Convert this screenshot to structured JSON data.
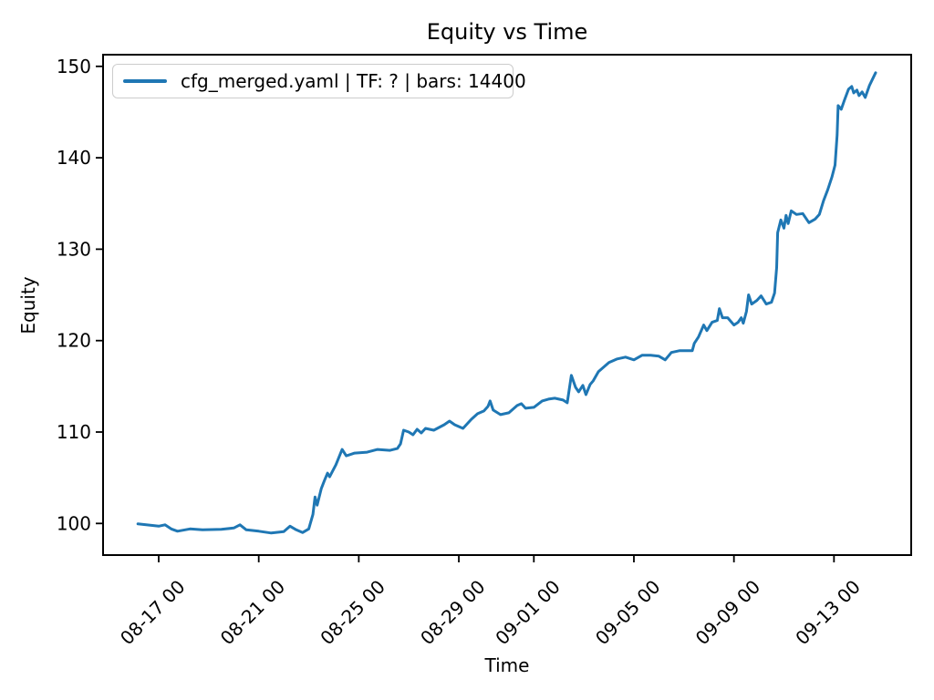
{
  "title": "Equity vs Time",
  "axis": {
    "xlabel": "Time",
    "ylabel": "Equity"
  },
  "legend": {
    "label": "cfg_merged.yaml | TF: ? | bars: 14400",
    "position": "upper left"
  },
  "colors": {
    "line": "#1f77b4",
    "spine": "#000000",
    "tick_text": "#000000",
    "legend_border": "#cccccc",
    "background": "#ffffff"
  },
  "chart_data": {
    "type": "line",
    "title": "Equity vs Time",
    "xlabel": "Time",
    "ylabel": "Equity",
    "grid": false,
    "legend_position": "upper left",
    "x_tick_labels": [
      "08-17 00",
      "08-21 00",
      "08-25 00",
      "08-29 00",
      "09-01 00",
      "09-05 00",
      "09-09 00",
      "09-13 00"
    ],
    "x_tick_rotation_deg": 45,
    "y_ticks": [
      100,
      110,
      120,
      130,
      140,
      150
    ],
    "ylim": [
      96.5,
      151.4
    ],
    "xlim": [
      "08-14 18:00",
      "09-16 02:00"
    ],
    "series": [
      {
        "name": "cfg_merged.yaml | TF: ? | bars: 14400",
        "color": "#1f77b4",
        "points": [
          [
            "08-16 04:00",
            99.95
          ],
          [
            "08-16 12:00",
            99.85
          ],
          [
            "08-17 00:00",
            99.7
          ],
          [
            "08-17 06:00",
            99.85
          ],
          [
            "08-17 12:00",
            99.4
          ],
          [
            "08-17 18:00",
            99.15
          ],
          [
            "08-18 06:00",
            99.4
          ],
          [
            "08-18 18:00",
            99.3
          ],
          [
            "08-19 12:00",
            99.35
          ],
          [
            "08-20 00:00",
            99.5
          ],
          [
            "08-20 06:00",
            99.85
          ],
          [
            "08-20 12:00",
            99.3
          ],
          [
            "08-21 00:00",
            99.15
          ],
          [
            "08-21 12:00",
            98.95
          ],
          [
            "08-22 00:00",
            99.1
          ],
          [
            "08-22 06:00",
            99.7
          ],
          [
            "08-22 12:00",
            99.3
          ],
          [
            "08-22 18:00",
            99.0
          ],
          [
            "08-23 00:00",
            99.4
          ],
          [
            "08-23 04:00",
            101.0
          ],
          [
            "08-23 06:00",
            102.9
          ],
          [
            "08-23 08:00",
            102.0
          ],
          [
            "08-23 12:00",
            103.8
          ],
          [
            "08-23 15:00",
            104.7
          ],
          [
            "08-23 18:00",
            105.5
          ],
          [
            "08-23 20:00",
            105.1
          ],
          [
            "08-24 02:00",
            106.4
          ],
          [
            "08-24 08:00",
            108.1
          ],
          [
            "08-24 12:00",
            107.4
          ],
          [
            "08-24 20:00",
            107.7
          ],
          [
            "08-25 08:00",
            107.8
          ],
          [
            "08-25 18:00",
            108.1
          ],
          [
            "08-26 06:00",
            108.0
          ],
          [
            "08-26 13:00",
            108.2
          ],
          [
            "08-26 16:00",
            108.7
          ],
          [
            "08-26 19:00",
            110.2
          ],
          [
            "08-27 00:00",
            110.0
          ],
          [
            "08-27 04:00",
            109.7
          ],
          [
            "08-27 08:00",
            110.3
          ],
          [
            "08-27 12:00",
            109.9
          ],
          [
            "08-27 16:00",
            110.4
          ],
          [
            "08-28 00:00",
            110.2
          ],
          [
            "08-28 10:00",
            110.8
          ],
          [
            "08-28 15:00",
            111.2
          ],
          [
            "08-28 20:00",
            110.8
          ],
          [
            "08-29 04:00",
            110.4
          ],
          [
            "08-29 12:00",
            111.4
          ],
          [
            "08-29 18:00",
            112.0
          ],
          [
            "08-30 00:00",
            112.3
          ],
          [
            "08-30 04:00",
            112.8
          ],
          [
            "08-30 06:00",
            113.4
          ],
          [
            "08-30 09:00",
            112.4
          ],
          [
            "08-30 16:00",
            111.9
          ],
          [
            "08-31 00:00",
            112.1
          ],
          [
            "08-31 08:00",
            112.9
          ],
          [
            "08-31 12:00",
            113.1
          ],
          [
            "08-31 16:00",
            112.6
          ],
          [
            "09-01 00:00",
            112.7
          ],
          [
            "09-01 08:00",
            113.4
          ],
          [
            "09-01 14:00",
            113.6
          ],
          [
            "09-01 20:00",
            113.7
          ],
          [
            "09-02 04:00",
            113.5
          ],
          [
            "09-02 08:00",
            113.2
          ],
          [
            "09-02 12:00",
            116.2
          ],
          [
            "09-02 16:00",
            114.9
          ],
          [
            "09-02 19:00",
            114.4
          ],
          [
            "09-02 23:00",
            115.1
          ],
          [
            "09-03 02:00",
            114.1
          ],
          [
            "09-03 06:00",
            115.2
          ],
          [
            "09-03 09:00",
            115.6
          ],
          [
            "09-03 14:00",
            116.6
          ],
          [
            "09-03 18:00",
            117.0
          ],
          [
            "09-04 00:00",
            117.6
          ],
          [
            "09-04 08:00",
            118.0
          ],
          [
            "09-04 16:00",
            118.2
          ],
          [
            "09-05 00:00",
            117.9
          ],
          [
            "09-05 08:00",
            118.4
          ],
          [
            "09-05 16:00",
            118.4
          ],
          [
            "09-06 00:00",
            118.3
          ],
          [
            "09-06 06:00",
            117.9
          ],
          [
            "09-06 12:00",
            118.7
          ],
          [
            "09-06 20:00",
            118.9
          ],
          [
            "09-07 08:00",
            118.9
          ],
          [
            "09-07 10:00",
            119.7
          ],
          [
            "09-07 14:00",
            120.4
          ],
          [
            "09-07 19:00",
            121.7
          ],
          [
            "09-07 22:00",
            121.1
          ],
          [
            "09-08 03:00",
            122.0
          ],
          [
            "09-08 08:00",
            122.2
          ],
          [
            "09-08 10:00",
            123.5
          ],
          [
            "09-08 13:00",
            122.5
          ],
          [
            "09-08 18:00",
            122.5
          ],
          [
            "09-09 00:00",
            121.7
          ],
          [
            "09-09 04:00",
            122.0
          ],
          [
            "09-09 07:00",
            122.5
          ],
          [
            "09-09 09:00",
            121.9
          ],
          [
            "09-09 12:00",
            123.2
          ],
          [
            "09-09 14:00",
            125.0
          ],
          [
            "09-09 17:00",
            124.0
          ],
          [
            "09-09 22:00",
            124.4
          ],
          [
            "09-10 02:00",
            124.9
          ],
          [
            "09-10 07:00",
            124.0
          ],
          [
            "09-10 12:00",
            124.2
          ],
          [
            "09-10 15:00",
            125.2
          ],
          [
            "09-10 17:00",
            128.0
          ],
          [
            "09-10 18:00",
            131.8
          ],
          [
            "09-10 21:00",
            133.2
          ],
          [
            "09-11 00:00",
            132.3
          ],
          [
            "09-11 02:00",
            133.7
          ],
          [
            "09-11 04:00",
            132.8
          ],
          [
            "09-11 07:00",
            134.2
          ],
          [
            "09-11 12:00",
            133.8
          ],
          [
            "09-11 18:00",
            133.9
          ],
          [
            "09-12 00:00",
            132.9
          ],
          [
            "09-12 06:00",
            133.3
          ],
          [
            "09-12 10:00",
            133.8
          ],
          [
            "09-12 14:00",
            135.3
          ],
          [
            "09-12 18:00",
            136.5
          ],
          [
            "09-12 22:00",
            137.9
          ],
          [
            "09-13 01:00",
            139.2
          ],
          [
            "09-13 03:00",
            142.5
          ],
          [
            "09-13 04:00",
            145.7
          ],
          [
            "09-13 07:00",
            145.3
          ],
          [
            "09-13 10:00",
            146.3
          ],
          [
            "09-13 14:00",
            147.5
          ],
          [
            "09-13 17:00",
            147.8
          ],
          [
            "09-13 19:00",
            147.1
          ],
          [
            "09-13 22:00",
            147.4
          ],
          [
            "09-14 00:00",
            146.8
          ],
          [
            "09-14 03:00",
            147.2
          ],
          [
            "09-14 06:00",
            146.6
          ],
          [
            "09-14 10:00",
            147.9
          ],
          [
            "09-14 13:00",
            148.6
          ],
          [
            "09-14 16:00",
            149.3
          ]
        ]
      }
    ]
  }
}
